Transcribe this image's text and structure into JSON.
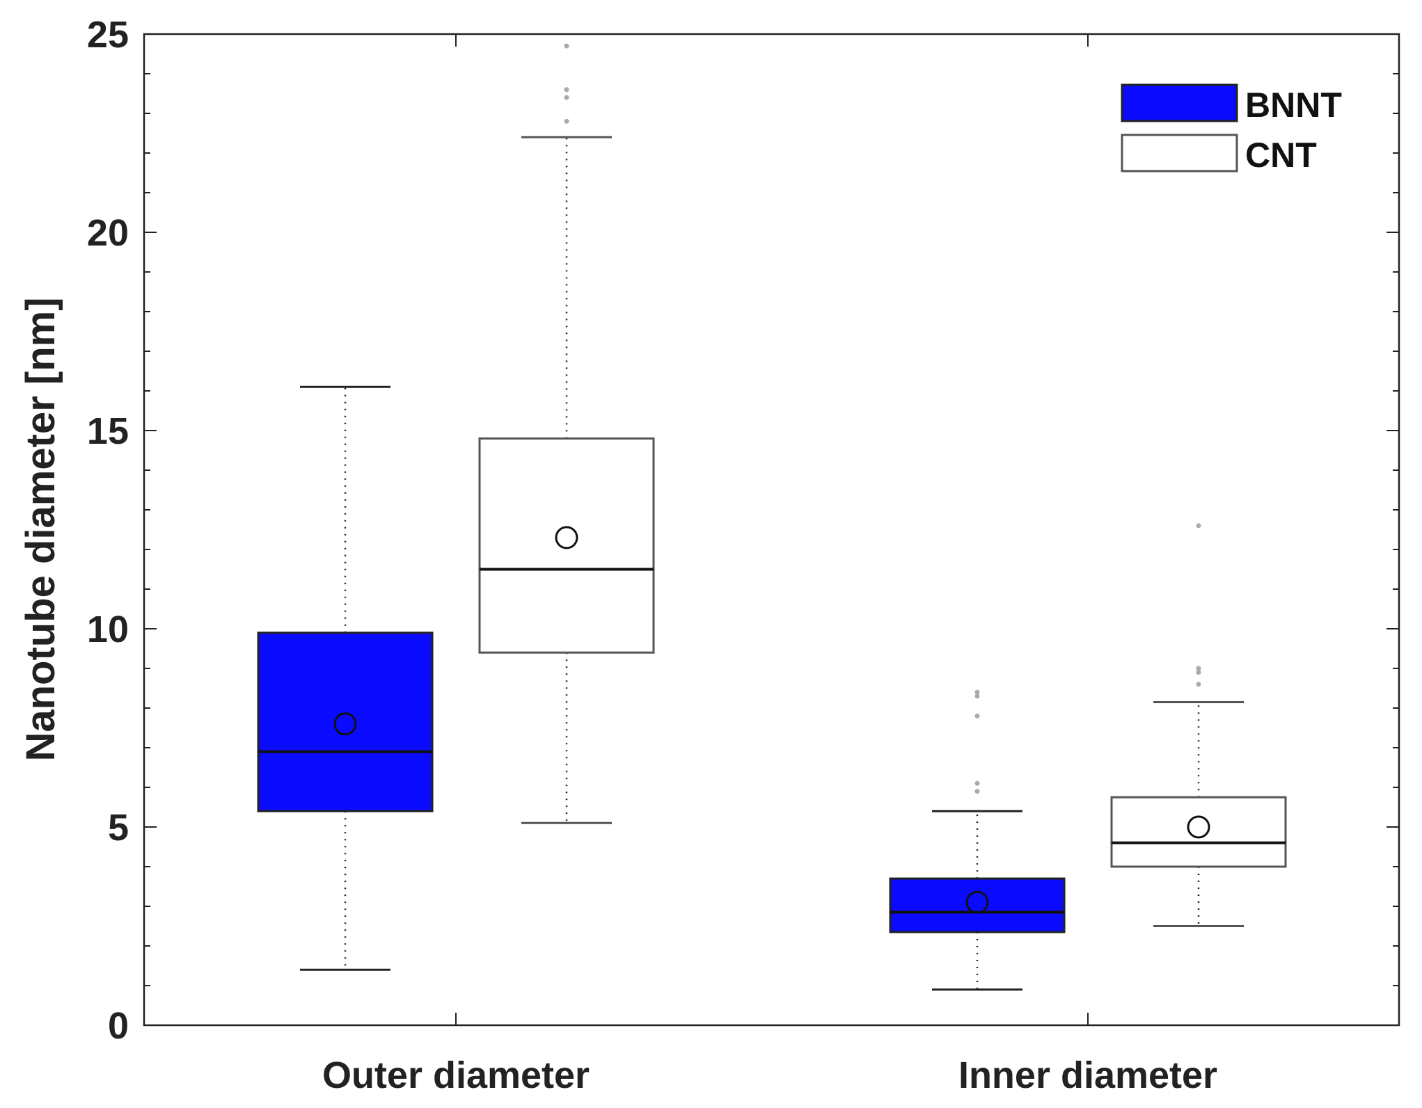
{
  "chart_data": {
    "type": "boxplot",
    "title": "",
    "xlabel": "",
    "ylabel": "Nanotube diameter [nm]",
    "ylim": [
      0,
      25
    ],
    "yticks": [
      "0",
      "5",
      "10",
      "15",
      "20",
      "25"
    ],
    "categories": [
      "Outer diameter",
      "Inner diameter"
    ],
    "grid": false,
    "legend_position": "top-right",
    "series": [
      {
        "name": "BNNT",
        "color": "#0a0aff",
        "boxes": [
          {
            "category": "Outer diameter",
            "whisker_low": 1.4,
            "q1": 5.4,
            "median": 6.9,
            "q3": 9.9,
            "whisker_high": 16.1,
            "mean": 7.6,
            "outliers": []
          },
          {
            "category": "Inner diameter",
            "whisker_low": 0.9,
            "q1": 2.35,
            "median": 2.85,
            "q3": 3.7,
            "whisker_high": 5.4,
            "mean": 3.1,
            "outliers": [
              5.9,
              6.1,
              7.8,
              8.3,
              8.4
            ]
          }
        ]
      },
      {
        "name": "CNT",
        "color": "#ffffff",
        "boxes": [
          {
            "category": "Outer diameter",
            "whisker_low": 5.1,
            "q1": 9.4,
            "median": 11.5,
            "q3": 14.8,
            "whisker_high": 22.4,
            "mean": 12.3,
            "outliers": [
              22.8,
              23.4,
              23.6,
              24.7
            ]
          },
          {
            "category": "Inner diameter",
            "whisker_low": 2.5,
            "q1": 4.0,
            "median": 4.6,
            "q3": 5.75,
            "whisker_high": 8.15,
            "mean": 5.0,
            "outliers": [
              8.6,
              8.9,
              9.0,
              12.6
            ]
          }
        ]
      }
    ]
  }
}
